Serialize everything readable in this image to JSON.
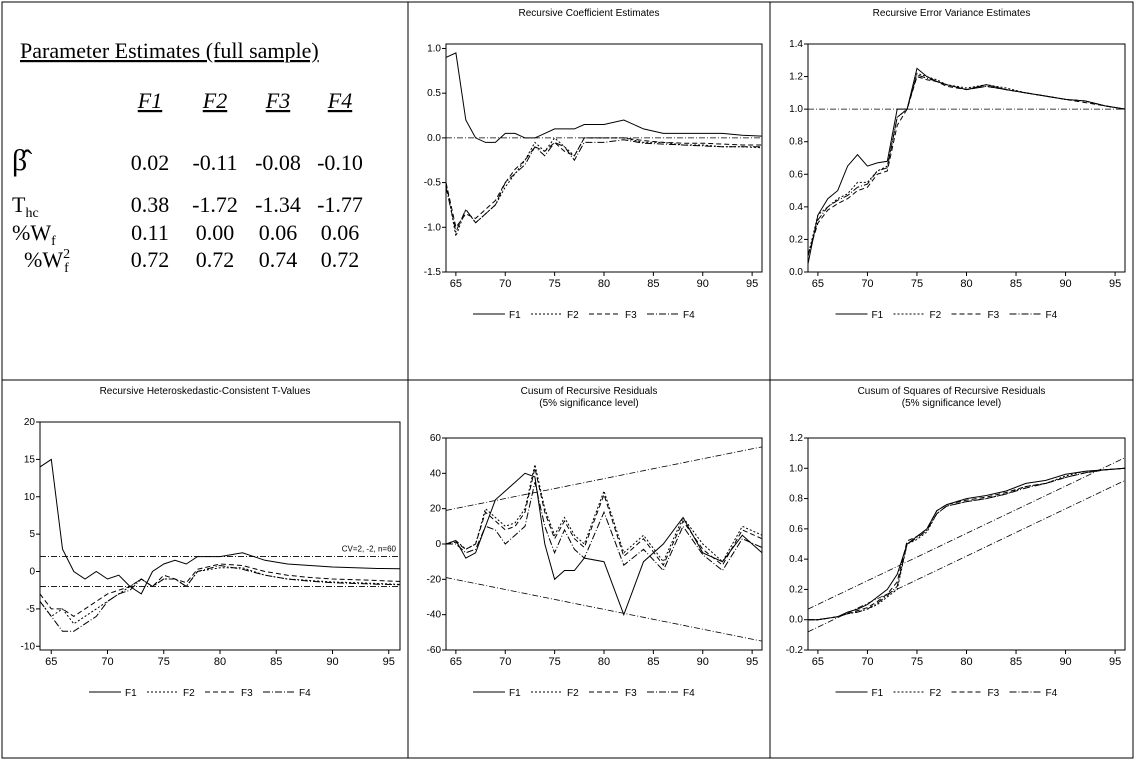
{
  "table": {
    "title": "Parameter Estimates (full sample)",
    "columns": [
      "F1",
      "F2",
      "F3",
      "F4"
    ],
    "rows": [
      {
        "label": {
          "main": "β̂"
        },
        "cells": [
          "0.02",
          "-0.11",
          "-0.08",
          "-0.10"
        ]
      },
      {
        "label": {
          "main": "T",
          "sub": "hc"
        },
        "cells": [
          "0.38",
          "-1.72",
          "-1.34",
          "-1.77"
        ]
      },
      {
        "label": {
          "main": "%W",
          "sub": "f"
        },
        "cells": [
          "0.11",
          "0.00",
          "0.06",
          "0.06"
        ]
      },
      {
        "label": {
          "main": "%W",
          "sup": "2",
          "sub": "f"
        },
        "cells": [
          "0.72",
          "0.72",
          "0.74",
          "0.72"
        ]
      }
    ]
  },
  "chart_data": [
    {
      "type": "line",
      "title": "Recursive Coefficient Estimates",
      "x": [
        64,
        65,
        66,
        67,
        68,
        69,
        70,
        71,
        72,
        73,
        74,
        75,
        76,
        77,
        78,
        80,
        82,
        84,
        86,
        88,
        90,
        92,
        94,
        96
      ],
      "xlim": [
        64,
        96
      ],
      "xticks": [
        65,
        70,
        75,
        80,
        85,
        90,
        95
      ],
      "ylim": [
        -1.5,
        1.05
      ],
      "yticks": [
        {
          "value": -1.5,
          "label": "-1.5"
        },
        {
          "value": -1,
          "label": "-1.0"
        },
        {
          "value": -0.5,
          "label": "-0.5"
        },
        {
          "value": 0,
          "label": "0.0"
        },
        {
          "value": 0.5,
          "label": "0.5"
        },
        {
          "value": 1,
          "label": "1.0"
        }
      ],
      "reference_lines": [
        {
          "x": [
            64,
            96
          ],
          "y": [
            0,
            0
          ]
        }
      ],
      "series": [
        {
          "name": "F1",
          "color": "#000000",
          "dash": "solid",
          "values": [
            0.9,
            0.95,
            0.2,
            0.0,
            -0.05,
            -0.05,
            0.05,
            0.05,
            0.0,
            0.0,
            0.05,
            0.1,
            0.1,
            0.1,
            0.15,
            0.15,
            0.2,
            0.1,
            0.05,
            0.05,
            0.05,
            0.05,
            0.03,
            0.02
          ]
        },
        {
          "name": "F2",
          "color": "#000000",
          "dash": "dotted",
          "values": [
            -0.5,
            -1.1,
            -0.8,
            -0.95,
            -0.85,
            -0.75,
            -0.55,
            -0.4,
            -0.25,
            -0.05,
            -0.15,
            0.0,
            -0.1,
            -0.2,
            0.0,
            0.0,
            0.0,
            -0.05,
            -0.05,
            -0.08,
            -0.08,
            -0.1,
            -0.1,
            -0.11
          ]
        },
        {
          "name": "F3",
          "color": "#000000",
          "dash": "dashed",
          "values": [
            -0.5,
            -1.0,
            -0.85,
            -0.9,
            -0.8,
            -0.7,
            -0.5,
            -0.35,
            -0.25,
            -0.1,
            -0.15,
            -0.05,
            -0.15,
            -0.2,
            0.0,
            0.0,
            0.0,
            -0.03,
            -0.05,
            -0.06,
            -0.06,
            -0.07,
            -0.08,
            -0.08
          ]
        },
        {
          "name": "F4",
          "color": "#000000",
          "dash": "dashdot",
          "values": [
            -0.55,
            -1.05,
            -0.8,
            -0.95,
            -0.85,
            -0.75,
            -0.5,
            -0.4,
            -0.3,
            -0.1,
            -0.2,
            -0.05,
            -0.1,
            -0.25,
            -0.05,
            -0.05,
            -0.02,
            -0.06,
            -0.07,
            -0.08,
            -0.09,
            -0.1,
            -0.1,
            -0.1
          ]
        }
      ]
    },
    {
      "type": "line",
      "title": "Recursive Error Variance Estimates",
      "x": [
        64,
        65,
        66,
        67,
        68,
        69,
        70,
        71,
        72,
        73,
        74,
        75,
        76,
        77,
        78,
        80,
        82,
        84,
        86,
        88,
        90,
        92,
        94,
        96
      ],
      "xlim": [
        64,
        96
      ],
      "xticks": [
        65,
        70,
        75,
        80,
        85,
        90,
        95
      ],
      "ylim": [
        0,
        1.4
      ],
      "yticks": [
        {
          "value": 0,
          "label": "0.0"
        },
        0.2,
        0.4,
        0.6,
        0.8,
        {
          "value": 1,
          "label": "1.0"
        },
        1.2,
        1.4
      ],
      "reference_lines": [
        {
          "x": [
            64,
            96
          ],
          "y": [
            1,
            1
          ]
        }
      ],
      "series": [
        {
          "name": "F1",
          "color": "#000000",
          "dash": "solid",
          "values": [
            0.05,
            0.35,
            0.45,
            0.5,
            0.65,
            0.72,
            0.65,
            0.67,
            0.68,
            1.0,
            1.0,
            1.25,
            1.2,
            1.17,
            1.15,
            1.12,
            1.15,
            1.12,
            1.1,
            1.08,
            1.06,
            1.05,
            1.02,
            1.0
          ]
        },
        {
          "name": "F2",
          "color": "#000000",
          "dash": "dotted",
          "values": [
            0.1,
            0.35,
            0.4,
            0.45,
            0.48,
            0.55,
            0.55,
            0.62,
            0.65,
            0.95,
            1.0,
            1.22,
            1.2,
            1.18,
            1.15,
            1.13,
            1.15,
            1.13,
            1.1,
            1.08,
            1.06,
            1.05,
            1.02,
            1.0
          ]
        },
        {
          "name": "F3",
          "color": "#000000",
          "dash": "dashed",
          "values": [
            0.1,
            0.3,
            0.38,
            0.42,
            0.45,
            0.5,
            0.52,
            0.6,
            0.62,
            0.9,
            1.0,
            1.2,
            1.18,
            1.17,
            1.14,
            1.12,
            1.14,
            1.12,
            1.1,
            1.08,
            1.06,
            1.04,
            1.02,
            1.0
          ]
        },
        {
          "name": "F4",
          "color": "#000000",
          "dash": "dashdot",
          "values": [
            0.1,
            0.32,
            0.4,
            0.44,
            0.47,
            0.52,
            0.54,
            0.62,
            0.64,
            0.95,
            1.0,
            1.21,
            1.19,
            1.17,
            1.15,
            1.12,
            1.14,
            1.12,
            1.1,
            1.08,
            1.06,
            1.05,
            1.02,
            1.0
          ]
        }
      ]
    },
    {
      "type": "line",
      "title": "Recursive Heteroskedastic-Consistent T-Values",
      "x": [
        64,
        65,
        66,
        67,
        68,
        69,
        70,
        71,
        72,
        73,
        74,
        75,
        76,
        77,
        78,
        80,
        82,
        84,
        86,
        88,
        90,
        92,
        94,
        96
      ],
      "xlim": [
        64,
        96
      ],
      "xticks": [
        65,
        70,
        75,
        80,
        85,
        90,
        95
      ],
      "ylim": [
        -10.5,
        20
      ],
      "yticks": [
        -10,
        -5,
        0,
        5,
        10,
        15,
        20
      ],
      "annotation": "CV=2, -2, n=60",
      "reference_lines": [
        {
          "x": [
            64,
            96
          ],
          "y": [
            2,
            2
          ]
        },
        {
          "x": [
            64,
            96
          ],
          "y": [
            -2,
            -2
          ]
        }
      ],
      "series": [
        {
          "name": "F1",
          "color": "#000000",
          "dash": "solid",
          "values": [
            14,
            15,
            3,
            0,
            -1,
            0,
            -1,
            -0.5,
            -2,
            -3,
            0,
            1,
            1.5,
            1,
            2,
            2,
            2.5,
            1.5,
            1,
            0.8,
            0.6,
            0.5,
            0.4,
            0.38
          ]
        },
        {
          "name": "F2",
          "color": "#000000",
          "dash": "dotted",
          "values": [
            -4,
            -6,
            -5,
            -7,
            -6,
            -5,
            -4,
            -3,
            -2,
            -1,
            -2,
            -1,
            -1,
            -2,
            0,
            0.5,
            0.5,
            -0.5,
            -1,
            -1.2,
            -1.4,
            -1.5,
            -1.6,
            -1.72
          ]
        },
        {
          "name": "F3",
          "color": "#000000",
          "dash": "dashed",
          "values": [
            -3,
            -5,
            -5,
            -6,
            -5,
            -4,
            -3,
            -2.5,
            -2,
            -1,
            -2,
            -0.5,
            -1,
            -1.5,
            0.3,
            1,
            0.8,
            0,
            -0.5,
            -0.8,
            -1,
            -1.1,
            -1.2,
            -1.34
          ]
        },
        {
          "name": "F4",
          "color": "#000000",
          "dash": "dashdot",
          "values": [
            -4,
            -6,
            -8,
            -8,
            -7,
            -6,
            -4,
            -3,
            -2.5,
            -1,
            -2,
            -1,
            -1,
            -2,
            0,
            0.8,
            0.3,
            -0.5,
            -1,
            -1.3,
            -1.5,
            -1.6,
            -1.7,
            -1.77
          ]
        }
      ]
    },
    {
      "type": "line",
      "title": "Cusum of Recursive Residuals",
      "subtitle": "(5% significance level)",
      "x": [
        64,
        65,
        66,
        67,
        68,
        69,
        70,
        71,
        72,
        73,
        74,
        75,
        76,
        77,
        78,
        80,
        82,
        84,
        86,
        88,
        90,
        92,
        94,
        96
      ],
      "xlim": [
        64,
        96
      ],
      "xticks": [
        65,
        70,
        75,
        80,
        85,
        90,
        95
      ],
      "ylim": [
        -60,
        60
      ],
      "yticks": [
        -60,
        -40,
        -20,
        0,
        20,
        40,
        60
      ],
      "reference_lines": [
        {
          "x": [
            64,
            96
          ],
          "y": [
            19,
            55
          ]
        },
        {
          "x": [
            64,
            96
          ],
          "y": [
            -19,
            -55
          ]
        }
      ],
      "series": [
        {
          "name": "F1",
          "color": "#000000",
          "dash": "solid",
          "values": [
            0,
            2,
            -8,
            -5,
            10,
            25,
            30,
            35,
            40,
            38,
            0,
            -20,
            -15,
            -15,
            -8,
            -10,
            -40,
            -10,
            0,
            15,
            -5,
            -10,
            5,
            -5
          ]
        },
        {
          "name": "F2",
          "color": "#000000",
          "dash": "dotted",
          "values": [
            0,
            2,
            -3,
            0,
            20,
            15,
            10,
            12,
            20,
            45,
            20,
            5,
            15,
            5,
            0,
            30,
            -5,
            5,
            -10,
            15,
            0,
            -10,
            10,
            5
          ]
        },
        {
          "name": "F3",
          "color": "#000000",
          "dash": "dashed",
          "values": [
            0,
            1,
            -3,
            0,
            18,
            13,
            8,
            10,
            18,
            43,
            18,
            3,
            13,
            3,
            -2,
            28,
            -7,
            3,
            -12,
            13,
            -3,
            -12,
            8,
            3
          ]
        },
        {
          "name": "F4",
          "color": "#000000",
          "dash": "dashdot",
          "values": [
            0,
            0,
            -5,
            -3,
            10,
            8,
            0,
            5,
            10,
            35,
            10,
            -5,
            8,
            -3,
            -8,
            18,
            -12,
            -3,
            -15,
            10,
            -6,
            -15,
            3,
            -2
          ]
        }
      ]
    },
    {
      "type": "line",
      "title": "Cusum of Squares of Recursive Residuals",
      "subtitle": "(5% significance level)",
      "x": [
        64,
        65,
        66,
        67,
        68,
        69,
        70,
        71,
        72,
        73,
        74,
        75,
        76,
        77,
        78,
        80,
        82,
        84,
        86,
        88,
        90,
        92,
        94,
        96
      ],
      "xlim": [
        64,
        96
      ],
      "xticks": [
        65,
        70,
        75,
        80,
        85,
        90,
        95
      ],
      "ylim": [
        -0.2,
        1.2
      ],
      "yticks": [
        -0.2,
        {
          "value": 0,
          "label": "0.0"
        },
        0.2,
        0.4,
        0.6,
        0.8,
        {
          "value": 1,
          "label": "1.0"
        },
        1.2
      ],
      "reference_lines": [
        {
          "x": [
            64,
            96
          ],
          "y": [
            0.07,
            1.07
          ]
        },
        {
          "x": [
            64,
            96
          ],
          "y": [
            -0.08,
            0.92
          ]
        }
      ],
      "series": [
        {
          "name": "F1",
          "color": "#000000",
          "dash": "solid",
          "values": [
            0,
            0,
            0.01,
            0.02,
            0.05,
            0.07,
            0.1,
            0.15,
            0.2,
            0.3,
            0.5,
            0.55,
            0.6,
            0.72,
            0.76,
            0.8,
            0.82,
            0.85,
            0.9,
            0.92,
            0.96,
            0.98,
            0.99,
            1.0
          ]
        },
        {
          "name": "F2",
          "color": "#000000",
          "dash": "dotted",
          "values": [
            0,
            0,
            0.01,
            0.02,
            0.04,
            0.05,
            0.07,
            0.1,
            0.15,
            0.2,
            0.5,
            0.53,
            0.58,
            0.7,
            0.75,
            0.78,
            0.8,
            0.83,
            0.88,
            0.9,
            0.95,
            0.98,
            0.99,
            1.0
          ]
        },
        {
          "name": "F3",
          "color": "#000000",
          "dash": "dashed",
          "values": [
            0,
            0,
            0.01,
            0.02,
            0.04,
            0.06,
            0.08,
            0.12,
            0.17,
            0.25,
            0.52,
            0.55,
            0.6,
            0.72,
            0.76,
            0.79,
            0.81,
            0.84,
            0.88,
            0.9,
            0.94,
            0.97,
            0.99,
            1.0
          ]
        },
        {
          "name": "F4",
          "color": "#000000",
          "dash": "dashdot",
          "values": [
            0,
            0,
            0.01,
            0.02,
            0.04,
            0.05,
            0.07,
            0.11,
            0.16,
            0.22,
            0.5,
            0.54,
            0.59,
            0.7,
            0.75,
            0.78,
            0.8,
            0.83,
            0.87,
            0.9,
            0.94,
            0.97,
            0.99,
            1.0
          ]
        }
      ]
    }
  ]
}
